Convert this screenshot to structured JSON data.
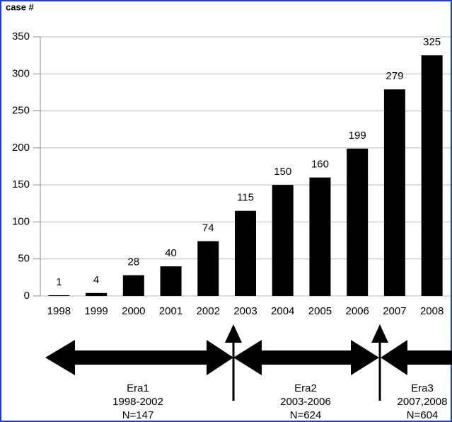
{
  "chart_data": {
    "type": "bar",
    "ylabel": "case #",
    "categories": [
      "1998",
      "1999",
      "2000",
      "2001",
      "2002",
      "2003",
      "2004",
      "2005",
      "2006",
      "2007",
      "2008"
    ],
    "values": [
      1,
      4,
      28,
      40,
      74,
      115,
      150,
      160,
      199,
      279,
      325
    ],
    "color": "#000000",
    "ylim": [
      0,
      350
    ],
    "yticks": [
      0,
      50,
      100,
      150,
      200,
      250,
      300,
      350
    ],
    "grid": true,
    "eras": [
      {
        "name": "Era1",
        "range": "1998-2002",
        "n": "N=147"
      },
      {
        "name": "Era2",
        "range": "2003-2006",
        "n": "N=624"
      },
      {
        "name": "Era3",
        "range": "2007,2008",
        "n": "N=604"
      }
    ]
  }
}
